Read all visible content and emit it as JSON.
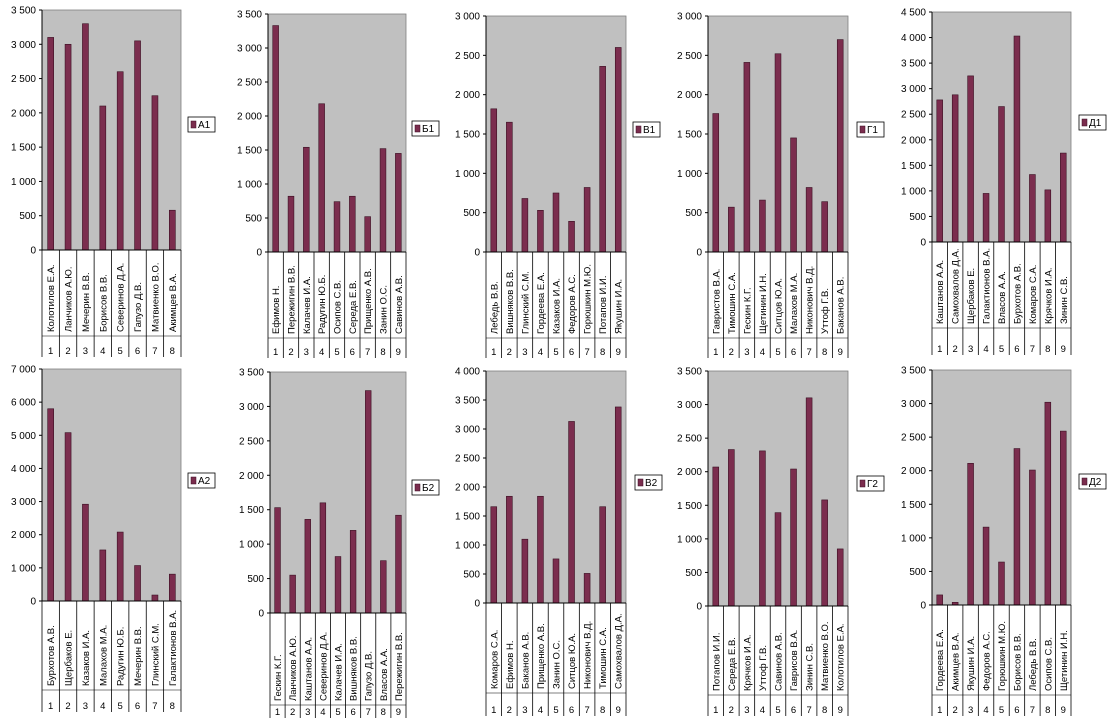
{
  "colors": {
    "plot_bg": "#c0c0c0",
    "bar": "#7b2d4e",
    "bar_edge": "#3a0f22",
    "axis": "#000000",
    "legend_swatch": "#7b2d4e",
    "page_bg": "#ffffff"
  },
  "chart_data": [
    {
      "type": "bar",
      "legend": "А1",
      "ylim": [
        0,
        3500
      ],
      "yticks": [
        "0",
        "500",
        "1 000",
        "1 500",
        "2 000",
        "2 500",
        "3 000",
        "3 500"
      ],
      "categories": [
        "Колотилов Е.А.",
        "Ланчиков А.Ю.",
        "Мечерин В.В.",
        "Борисов В.В.",
        "Северинов Д.А.",
        "Гапузо Д.В.",
        "Матвиенко В.О.",
        "Акимцев В.А."
      ],
      "index": [
        "1",
        "2",
        "3",
        "4",
        "5",
        "6",
        "7",
        "8"
      ],
      "values": [
        3100,
        3000,
        3300,
        2100,
        2600,
        3050,
        2250,
        580
      ]
    },
    {
      "type": "bar",
      "legend": "Б1",
      "ylim": [
        0,
        3500
      ],
      "yticks": [
        "0",
        "500",
        "1 000",
        "1 500",
        "2 000",
        "2 500",
        "3 000",
        "3 500"
      ],
      "categories": [
        "Ефимов Н.",
        "Пережигин В.В.",
        "Калачев И.А.",
        "Радугин Ю.Б.",
        "Осипов С.В.",
        "Середа Е.В.",
        "Прищенко А.В.",
        "Занин О.С.",
        "Савинов А.В."
      ],
      "index": [
        "1",
        "2",
        "3",
        "4",
        "5",
        "6",
        "7",
        "8",
        "9"
      ],
      "values": [
        3330,
        820,
        1540,
        2180,
        740,
        820,
        520,
        1520,
        1450
      ]
    },
    {
      "type": "bar",
      "legend": "В1",
      "ylim": [
        0,
        3000
      ],
      "yticks": [
        "0",
        "500",
        "1 000",
        "1 500",
        "2 000",
        "2 500",
        "3 000"
      ],
      "categories": [
        "Лебедь В.В.",
        "Вишняков В.В.",
        "Глинский С.М.",
        "Гордеева Е.А.",
        "Казаков И.А.",
        "Федоров А.С.",
        "Горюшкин М.Ю.",
        "Потапов И.И.",
        "Якушин И.А."
      ],
      "index": [
        "1",
        "2",
        "3",
        "4",
        "5",
        "6",
        "7",
        "8",
        "9"
      ],
      "values": [
        1820,
        1650,
        680,
        530,
        750,
        390,
        820,
        2360,
        2600
      ]
    },
    {
      "type": "bar",
      "legend": "Г1",
      "ylim": [
        0,
        3000
      ],
      "yticks": [
        "0",
        "500",
        "1 000",
        "1 500",
        "2 000",
        "2 500",
        "3 000"
      ],
      "categories": [
        "Гавристов В.А.",
        "Тимошин С.А.",
        "Гескин К.Г.",
        "Щетинин И.Н.",
        "Ситцов Ю.А.",
        "Малахов М.А.",
        "Никонович В.Д.",
        "Уттоф Г.В.",
        "Баканов А.В."
      ],
      "index": [
        "1",
        "2",
        "3",
        "4",
        "5",
        "6",
        "7",
        "8",
        "9"
      ],
      "values": [
        1760,
        570,
        2410,
        660,
        2520,
        1450,
        820,
        640,
        2700
      ]
    },
    {
      "type": "bar",
      "legend": "Д1",
      "ylim": [
        0,
        4500
      ],
      "yticks": [
        "0",
        "500",
        "1 000",
        "1 500",
        "2 000",
        "2 500",
        "3 000",
        "3 500",
        "4 000",
        "4 500"
      ],
      "categories": [
        "Каштанов А.А.",
        "Самохвалов Д.А.",
        "Щербаков Е.",
        "Галактионов В.А.",
        "Власов А.А.",
        "Бурхотов А.В.",
        "Комаров С.А.",
        "Крячков И.А.",
        "Зинин С.В."
      ],
      "index": [
        "1",
        "2",
        "3",
        "4",
        "5",
        "6",
        "7",
        "8",
        "9"
      ],
      "values": [
        2780,
        2880,
        3250,
        950,
        2650,
        4030,
        1320,
        1020,
        1740
      ]
    },
    {
      "type": "bar",
      "legend": "А2",
      "ylim": [
        0,
        7000
      ],
      "yticks": [
        "0",
        "1 000",
        "2 000",
        "3 000",
        "4 000",
        "5 000",
        "6 000",
        "7 000"
      ],
      "categories": [
        "Бурхотов А.В.",
        "Щербаков Е.",
        "Казаков И.А.",
        "Малахов М.А.",
        "Радугин Ю.Б.",
        "Мечерин В.В.",
        "Глинский С.М.",
        "Галактионов В.А."
      ],
      "index": [
        "1",
        "2",
        "3",
        "4",
        "5",
        "6",
        "7",
        "8"
      ],
      "values": [
        5800,
        5080,
        2920,
        1540,
        2080,
        1070,
        180,
        810
      ]
    },
    {
      "type": "bar",
      "legend": "Б2",
      "ylim": [
        0,
        3500
      ],
      "yticks": [
        "0",
        "500",
        "1 000",
        "1 500",
        "2 000",
        "2 500",
        "3 000",
        "3 500"
      ],
      "categories": [
        "Гескин К.Г.",
        "Ланчиков А.Ю.",
        "Каштанов А.А.",
        "Северинов Д.А.",
        "Калачев И.А.",
        "Вишняков В.В.",
        "Гапузо Д.В.",
        "Власов А.А.",
        "Пережигин В.В."
      ],
      "index": [
        "1",
        "2",
        "3",
        "4",
        "5",
        "6",
        "7",
        "8",
        "9"
      ],
      "values": [
        1530,
        550,
        1360,
        1600,
        820,
        1200,
        3230,
        760,
        1420
      ]
    },
    {
      "type": "bar",
      "legend": "В2",
      "ylim": [
        0,
        4000
      ],
      "yticks": [
        "0",
        "500",
        "1 000",
        "1 500",
        "2 000",
        "2 500",
        "3 000",
        "3 500",
        "4 000"
      ],
      "categories": [
        "Комаров С.А.",
        "Ефимов Н.",
        "Баканов А.В.",
        "Прищенко А.В.",
        "Занин О.С.",
        "Ситцов Ю.А.",
        "Никонович В.Д.",
        "Тимошин С.А.",
        "Самохвалов Д.А."
      ],
      "index": [
        "1",
        "2",
        "3",
        "4",
        "5",
        "6",
        "7",
        "8",
        "9"
      ],
      "values": [
        1660,
        1840,
        1100,
        1840,
        760,
        3130,
        510,
        1660,
        3380
      ]
    },
    {
      "type": "bar",
      "legend": "Г2",
      "ylim": [
        0,
        3500
      ],
      "yticks": [
        "0",
        "500",
        "1 000",
        "1 500",
        "2 000",
        "2 500",
        "3 000",
        "3 500"
      ],
      "categories": [
        "Потапов И.И.",
        "Середа Е.В.",
        "Крячков И.А.",
        "Уттоф Г.В.",
        "Савинов А.В.",
        "Гаврисов В.А.",
        "Зинин С.В.",
        "Матвиенко В.О.",
        "Колотилов Е.А."
      ],
      "index": [
        "1",
        "2",
        "3",
        "4",
        "5",
        "6",
        "7",
        "8",
        "9"
      ],
      "values": [
        2070,
        2330,
        0,
        2310,
        1390,
        2040,
        3100,
        1580,
        850
      ]
    },
    {
      "type": "bar",
      "legend": "Д2",
      "ylim": [
        0,
        3500
      ],
      "yticks": [
        "0",
        "500",
        "1 000",
        "1 500",
        "2 000",
        "2 500",
        "3 000",
        "3 500"
      ],
      "categories": [
        "Гордеева Е.А.",
        "Акимцев В.А.",
        "Якушин И.А.",
        "Федоров А.С.",
        "Горюшкин М.Ю.",
        "Борисов В.В.",
        "Лебедь В.В.",
        "Осипов С.В.",
        "Щетинин И.Н."
      ],
      "index": [
        "1",
        "2",
        "3",
        "4",
        "5",
        "6",
        "7",
        "8",
        "9"
      ],
      "values": [
        150,
        40,
        2110,
        1160,
        640,
        2330,
        2010,
        3020,
        2590
      ]
    }
  ]
}
